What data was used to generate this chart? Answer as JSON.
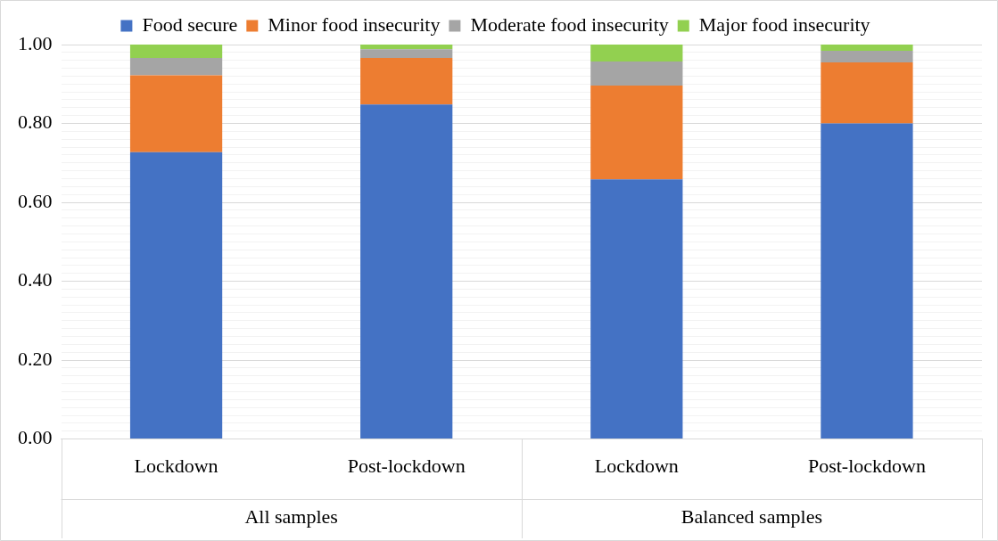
{
  "chart_data": {
    "type": "bar",
    "stacked": true,
    "categories": [
      "Lockdown",
      "Post-lockdown",
      "Lockdown",
      "Post-lockdown"
    ],
    "annotations": [
      "All samples",
      "Balanced samples"
    ],
    "series": [
      {
        "name": "Food secure",
        "color": "#4472c4",
        "values": [
          0.727,
          0.848,
          0.658,
          0.8
        ]
      },
      {
        "name": "Minor food insecurity",
        "color": "#ed7d31",
        "values": [
          0.195,
          0.118,
          0.238,
          0.155
        ]
      },
      {
        "name": "Moderate food insecurity",
        "color": "#a5a5a5",
        "values": [
          0.044,
          0.022,
          0.061,
          0.029
        ]
      },
      {
        "name": "Major food insecurity",
        "color": "#92d050",
        "values": [
          0.034,
          0.012,
          0.043,
          0.016
        ]
      }
    ],
    "ylim": [
      0,
      1
    ],
    "yticks": [
      {
        "value": 0,
        "label": "0.00"
      },
      {
        "value": 0.02,
        "label": null
      },
      {
        "value": 0.04,
        "label": null
      },
      {
        "value": 0.06,
        "label": null
      },
      {
        "value": 0.08,
        "label": null
      },
      {
        "value": 0.1,
        "label": null
      },
      {
        "value": 0.12,
        "label": null
      },
      {
        "value": 0.14,
        "label": null
      },
      {
        "value": 0.16,
        "label": null
      },
      {
        "value": 0.18,
        "label": null
      },
      {
        "value": 0.2,
        "label": "0.20"
      },
      {
        "value": 0.22,
        "label": null
      },
      {
        "value": 0.24,
        "label": null
      },
      {
        "value": 0.26,
        "label": null
      },
      {
        "value": 0.28,
        "label": null
      },
      {
        "value": 0.3,
        "label": null
      },
      {
        "value": 0.32,
        "label": null
      },
      {
        "value": 0.34,
        "label": null
      },
      {
        "value": 0.36,
        "label": null
      },
      {
        "value": 0.38,
        "label": null
      },
      {
        "value": 0.4,
        "label": "0.40"
      },
      {
        "value": 0.42,
        "label": null
      },
      {
        "value": 0.44,
        "label": null
      },
      {
        "value": 0.46,
        "label": null
      },
      {
        "value": 0.48,
        "label": null
      },
      {
        "value": 0.5,
        "label": null
      },
      {
        "value": 0.52,
        "label": null
      },
      {
        "value": 0.54,
        "label": null
      },
      {
        "value": 0.56,
        "label": null
      },
      {
        "value": 0.58,
        "label": null
      },
      {
        "value": 0.6,
        "label": "0.60"
      },
      {
        "value": 0.62,
        "label": null
      },
      {
        "value": 0.64,
        "label": null
      },
      {
        "value": 0.66,
        "label": null
      },
      {
        "value": 0.68,
        "label": null
      },
      {
        "value": 0.7,
        "label": null
      },
      {
        "value": 0.72,
        "label": null
      },
      {
        "value": 0.74,
        "label": null
      },
      {
        "value": 0.76,
        "label": null
      },
      {
        "value": 0.78,
        "label": null
      },
      {
        "value": 0.8,
        "label": "0.80"
      },
      {
        "value": 0.82,
        "label": null
      },
      {
        "value": 0.84,
        "label": null
      },
      {
        "value": 0.86,
        "label": null
      },
      {
        "value": 0.88,
        "label": null
      },
      {
        "value": 0.9,
        "label": null
      },
      {
        "value": 0.92,
        "label": null
      },
      {
        "value": 0.94,
        "label": null
      },
      {
        "value": 0.96,
        "label": null
      },
      {
        "value": 0.98,
        "label": null
      },
      {
        "value": 1,
        "label": "1.00"
      }
    ],
    "grid": "y",
    "legend": "top"
  }
}
